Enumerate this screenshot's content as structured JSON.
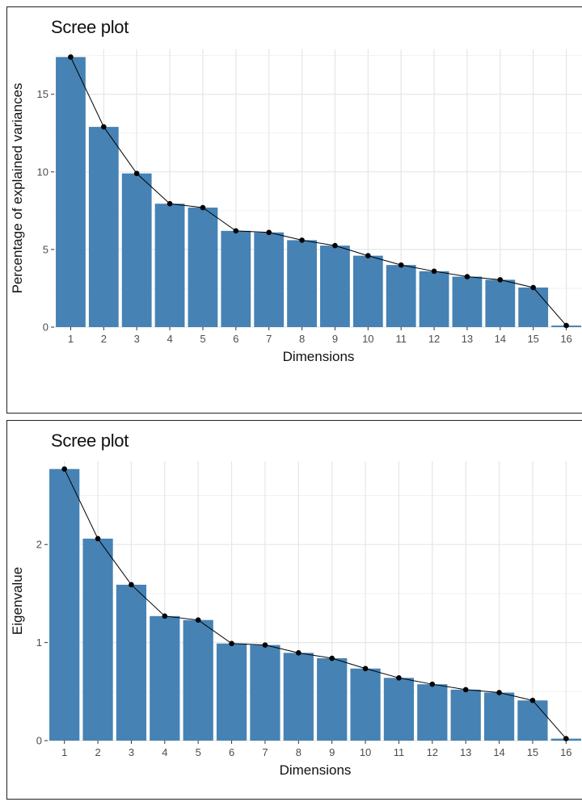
{
  "chart_data": [
    {
      "type": "bar",
      "title": "Scree plot",
      "xlabel": "Dimensions",
      "ylabel": "Percentage of explained variances",
      "categories": [
        "1",
        "2",
        "3",
        "4",
        "5",
        "6",
        "7",
        "8",
        "9",
        "10",
        "11",
        "12",
        "13",
        "14",
        "15",
        "16"
      ],
      "values": [
        17.4,
        12.9,
        9.9,
        7.95,
        7.7,
        6.2,
        6.1,
        5.6,
        5.25,
        4.6,
        4.0,
        3.6,
        3.25,
        3.05,
        2.55,
        0.1
      ],
      "yticks": [
        0,
        5,
        10,
        15
      ],
      "ylim": [
        0,
        17.9
      ],
      "grid": true,
      "bar_color": "#4682B4",
      "line_color": "#000000",
      "legend": "none"
    },
    {
      "type": "bar",
      "title": "Scree plot",
      "xlabel": "Dimensions",
      "ylabel": "Eigenvalue",
      "categories": [
        "1",
        "2",
        "3",
        "4",
        "5",
        "6",
        "7",
        "8",
        "9",
        "10",
        "11",
        "12",
        "13",
        "14",
        "15",
        "16"
      ],
      "values": [
        2.77,
        2.06,
        1.59,
        1.27,
        1.23,
        0.99,
        0.975,
        0.895,
        0.84,
        0.735,
        0.64,
        0.575,
        0.52,
        0.49,
        0.41,
        0.02
      ],
      "yticks": [
        0,
        1,
        2
      ],
      "ylim": [
        0,
        2.85
      ],
      "grid": true,
      "bar_color": "#4682B4",
      "line_color": "#000000",
      "legend": "none"
    }
  ]
}
